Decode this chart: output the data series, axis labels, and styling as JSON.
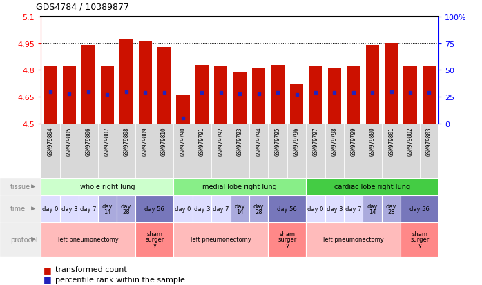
{
  "title": "GDS4784 / 10389877",
  "samples": [
    "GSM979804",
    "GSM979805",
    "GSM979806",
    "GSM979807",
    "GSM979808",
    "GSM979809",
    "GSM979810",
    "GSM979790",
    "GSM979791",
    "GSM979792",
    "GSM979793",
    "GSM979794",
    "GSM979795",
    "GSM979796",
    "GSM979797",
    "GSM979798",
    "GSM979799",
    "GSM979800",
    "GSM979801",
    "GSM979802",
    "GSM979803"
  ],
  "bar_heights": [
    4.82,
    4.82,
    4.94,
    4.82,
    4.975,
    4.96,
    4.93,
    4.66,
    4.83,
    4.82,
    4.79,
    4.81,
    4.83,
    4.72,
    4.82,
    4.81,
    4.82,
    4.94,
    4.95,
    4.82,
    4.82
  ],
  "blue_pct": [
    30,
    28,
    30,
    27,
    30,
    29,
    29,
    5,
    29,
    29,
    28,
    28,
    29,
    27,
    29,
    29,
    29,
    29,
    30,
    29,
    29
  ],
  "ymin": 4.5,
  "ymax": 5.1,
  "yticks_left": [
    4.5,
    4.65,
    4.8,
    4.95,
    5.1
  ],
  "ytick_labels_left": [
    "4.5",
    "4.65",
    "4.8",
    "4.95",
    "5.1"
  ],
  "right_yticks": [
    0,
    25,
    50,
    75,
    100
  ],
  "right_ytick_labels": [
    "0",
    "25",
    "50",
    "75",
    "100%"
  ],
  "bar_color": "#cc1100",
  "blue_color": "#2222bb",
  "dotted_lines": [
    4.65,
    4.8,
    4.95
  ],
  "tissue_groups": [
    {
      "label": "whole right lung",
      "start": 0,
      "end": 7,
      "color": "#ccffcc"
    },
    {
      "label": "medial lobe right lung",
      "start": 7,
      "end": 14,
      "color": "#88ee88"
    },
    {
      "label": "cardiac lobe right lung",
      "start": 14,
      "end": 21,
      "color": "#44cc44"
    }
  ],
  "time_spans": [
    {
      "label": "day 0",
      "start": 0,
      "end": 1,
      "color": "#ddddff"
    },
    {
      "label": "day 3",
      "start": 1,
      "end": 2,
      "color": "#ddddff"
    },
    {
      "label": "day 7",
      "start": 2,
      "end": 3,
      "color": "#ddddff"
    },
    {
      "label": "day\n14",
      "start": 3,
      "end": 4,
      "color": "#aaaadd"
    },
    {
      "label": "day\n28",
      "start": 4,
      "end": 5,
      "color": "#aaaadd"
    },
    {
      "label": "day 56",
      "start": 5,
      "end": 7,
      "color": "#7777bb"
    },
    {
      "label": "day 0",
      "start": 7,
      "end": 8,
      "color": "#ddddff"
    },
    {
      "label": "day 3",
      "start": 8,
      "end": 9,
      "color": "#ddddff"
    },
    {
      "label": "day 7",
      "start": 9,
      "end": 10,
      "color": "#ddddff"
    },
    {
      "label": "day\n14",
      "start": 10,
      "end": 11,
      "color": "#aaaadd"
    },
    {
      "label": "day\n28",
      "start": 11,
      "end": 12,
      "color": "#aaaadd"
    },
    {
      "label": "day 56",
      "start": 12,
      "end": 14,
      "color": "#7777bb"
    },
    {
      "label": "day 0",
      "start": 14,
      "end": 15,
      "color": "#ddddff"
    },
    {
      "label": "day 3",
      "start": 15,
      "end": 16,
      "color": "#ddddff"
    },
    {
      "label": "day 7",
      "start": 16,
      "end": 17,
      "color": "#ddddff"
    },
    {
      "label": "day\n14",
      "start": 17,
      "end": 18,
      "color": "#aaaadd"
    },
    {
      "label": "day\n28",
      "start": 18,
      "end": 19,
      "color": "#aaaadd"
    },
    {
      "label": "day 56",
      "start": 19,
      "end": 21,
      "color": "#7777bb"
    }
  ],
  "protocol_spans": [
    {
      "label": "left pneumonectomy",
      "start": 0,
      "end": 5,
      "color": "#ffbbbb"
    },
    {
      "label": "sham\nsurger\ny",
      "start": 5,
      "end": 7,
      "color": "#ff8888"
    },
    {
      "label": "left pneumonectomy",
      "start": 7,
      "end": 12,
      "color": "#ffbbbb"
    },
    {
      "label": "sham\nsurger\ny",
      "start": 12,
      "end": 14,
      "color": "#ff8888"
    },
    {
      "label": "left pneumonectomy",
      "start": 14,
      "end": 19,
      "color": "#ffbbbb"
    },
    {
      "label": "sham\nsurger\ny",
      "start": 19,
      "end": 21,
      "color": "#ff8888"
    }
  ],
  "row_labels": [
    "tissue",
    "time",
    "protocol"
  ],
  "label_color": "#888888",
  "sample_box_color": "#d8d8d8",
  "legend_red_label": "transformed count",
  "legend_blue_label": "percentile rank within the sample"
}
